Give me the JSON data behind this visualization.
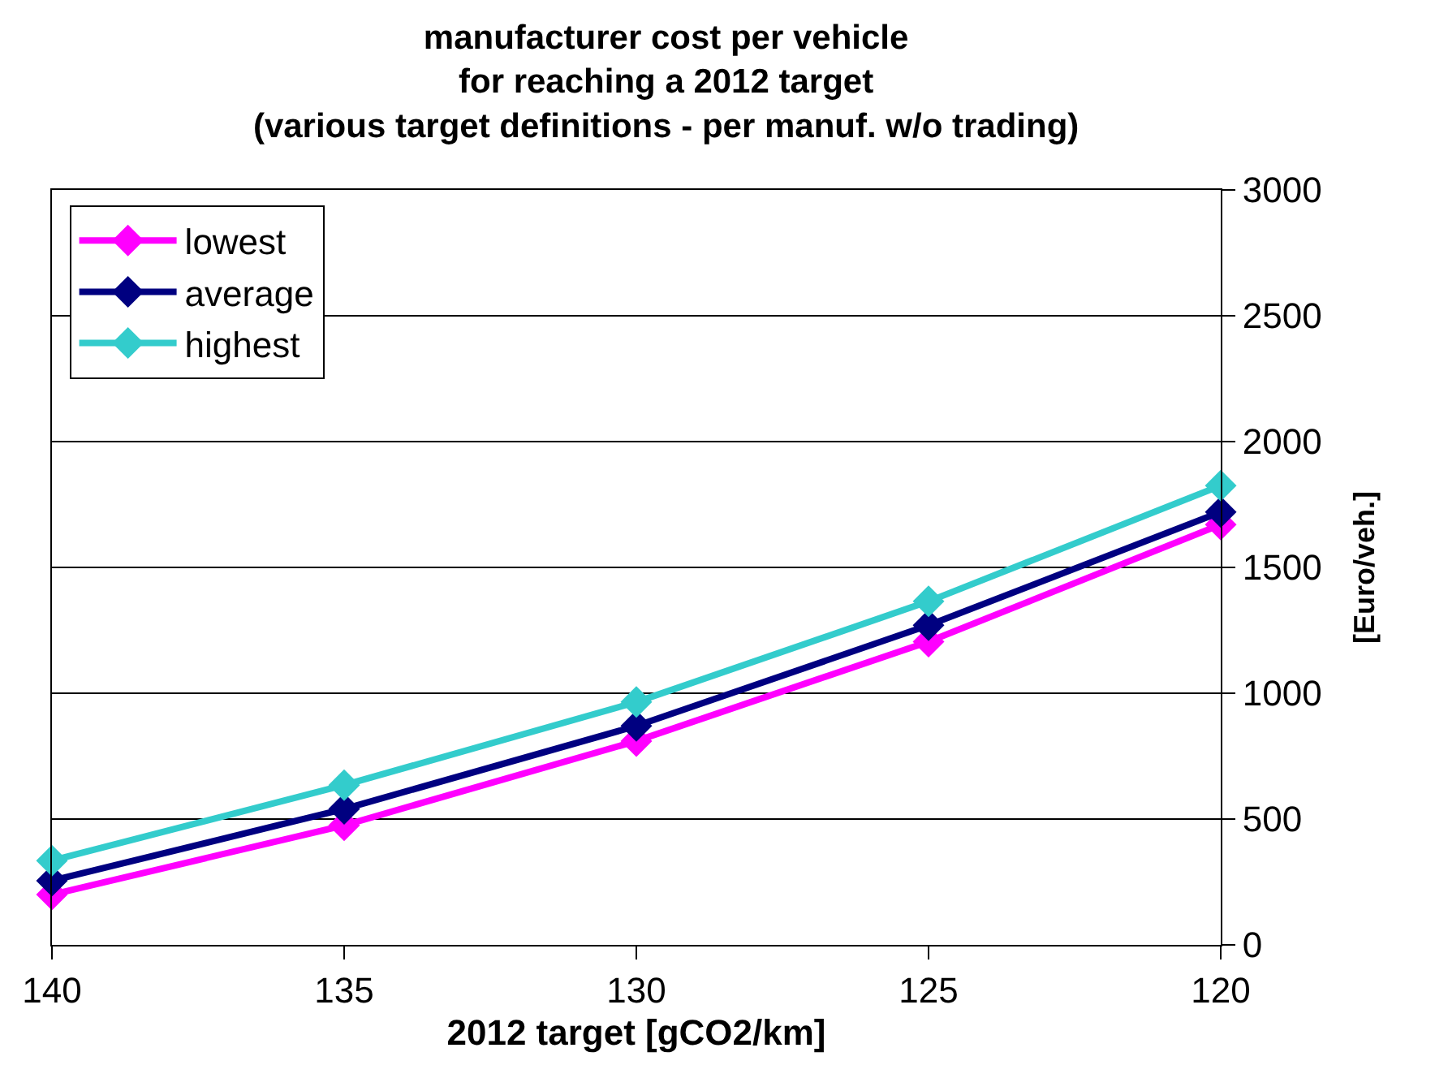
{
  "chart_data": {
    "type": "line",
    "title": "manufacturer cost per vehicle\nfor reaching a 2012 target\n(various target definitions - per manuf. w/o trading)",
    "xlabel": "2012 target [gCO2/km]",
    "ylabel": "[Euro/veh.]",
    "x": [
      140,
      135,
      130,
      125,
      120
    ],
    "series": [
      {
        "name": "lowest",
        "color": "#ff00ff",
        "values": [
          200,
          475,
          810,
          1205,
          1670
        ]
      },
      {
        "name": "average",
        "color": "#000080",
        "values": [
          255,
          540,
          870,
          1270,
          1720
        ]
      },
      {
        "name": "highest",
        "color": "#33cccc",
        "values": [
          335,
          635,
          965,
          1365,
          1825
        ]
      }
    ],
    "xlim": [
      140,
      120
    ],
    "xticks": [
      140,
      135,
      130,
      125,
      120
    ],
    "ylim": [
      0,
      3000
    ],
    "yticks": [
      0,
      500,
      1000,
      1500,
      2000,
      2500,
      3000
    ],
    "grid": "y",
    "legend": "top left",
    "marker": "diamond",
    "line_style": "solid"
  }
}
